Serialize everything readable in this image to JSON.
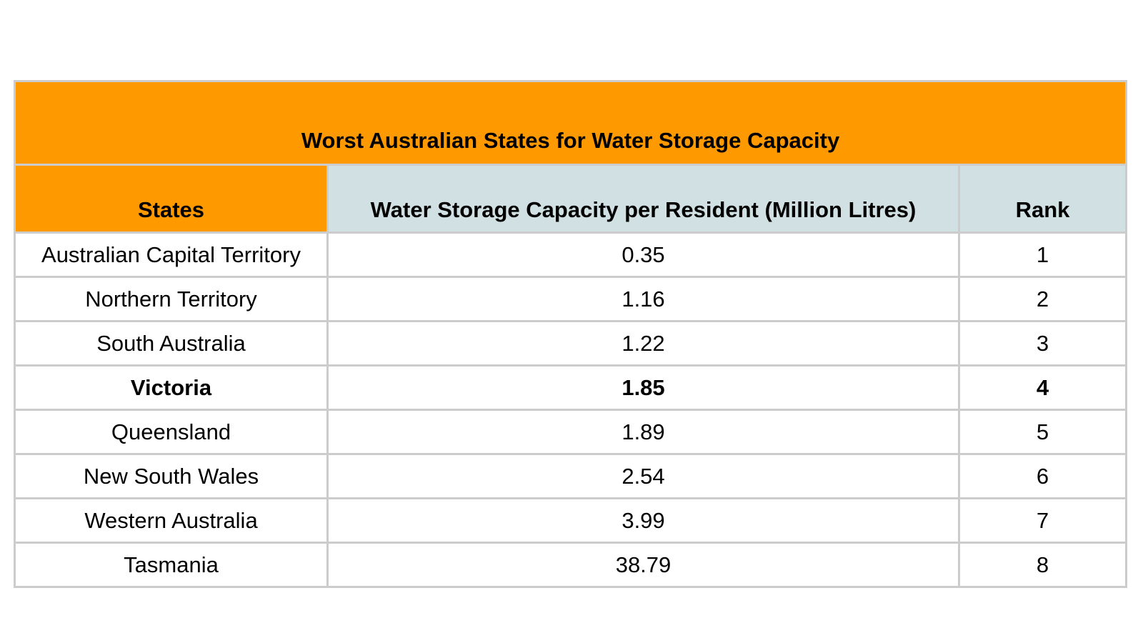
{
  "table": {
    "title": "Worst Australian States for Water Storage Capacity",
    "headers": [
      "States",
      "Water Storage Capacity per Resident (Million Litres)",
      "Rank"
    ],
    "rows": [
      [
        "Australian Capital Territory",
        "0.35",
        "1"
      ],
      [
        "Northern Territory",
        "1.16",
        "2"
      ],
      [
        "South Australia",
        "1.22",
        "3"
      ],
      [
        "Victoria",
        "1.85",
        "4"
      ],
      [
        "Queensland",
        "1.89",
        "5"
      ],
      [
        "New South Wales",
        "2.54",
        "6"
      ],
      [
        "Western Australia",
        "3.99",
        "7"
      ],
      [
        "Tasmania",
        "38.79",
        "8"
      ]
    ],
    "highlighted_row": 3
  },
  "colors": {
    "title_bg": "#ff9900",
    "states_header_bg": "#ff9900",
    "other_header_bg": "#d0e0e3",
    "border": "#cccccc"
  }
}
